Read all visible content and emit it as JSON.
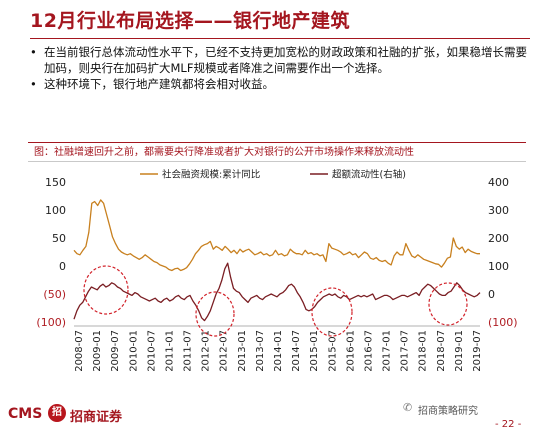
{
  "header": {
    "title": "12月行业布局选择——银行地产建筑"
  },
  "bullets": [
    "在当前银行总体流动性水平下，已经不支持更加宽松的财政政策和社融的扩张，如果稳增长需要加码，则央行在加码扩大MLF规模或者降准之间需要作出一个选择。",
    "这种环境下，银行地产建筑都将会相对收益。"
  ],
  "chart_caption": "图：社融增速回升之前，都需要央行降准或者扩大对银行的公开市场操作来释放流动性",
  "chart_data": {
    "type": "line",
    "x_tick_labels": [
      "2008-07",
      "2009-01",
      "2009-07",
      "2010-01",
      "2010-07",
      "2011-01",
      "2011-07",
      "2012-01",
      "2012-07",
      "2013-01",
      "2013-07",
      "2014-01",
      "2014-07",
      "2015-01",
      "2015-07",
      "2016-01",
      "2016-07",
      "2017-01",
      "2017-07",
      "2018-01",
      "2018-07",
      "2019-01",
      "2019-07"
    ],
    "y_left_tick_labels": [
      "150",
      "100",
      "50",
      "0",
      "(50)",
      "(100)"
    ],
    "y_left_range": [
      -100,
      150
    ],
    "y_right_tick_labels": [
      "400",
      "300",
      "200",
      "100",
      "0",
      "(100)"
    ],
    "y_right_range": [
      -100,
      400
    ],
    "legend_position": "top",
    "series": [
      {
        "name": "社会融资规模:累计同比",
        "axis": "left",
        "color": "#c8801f",
        "values": [
          28,
          22,
          20,
          28,
          35,
          60,
          112,
          115,
          108,
          118,
          112,
          92,
          72,
          52,
          40,
          30,
          25,
          22,
          20,
          22,
          18,
          15,
          12,
          15,
          20,
          16,
          12,
          8,
          6,
          2,
          0,
          -2,
          -6,
          -8,
          -5,
          -4,
          -8,
          -6,
          -3,
          4,
          12,
          22,
          28,
          35,
          38,
          40,
          44,
          30,
          35,
          32,
          28,
          35,
          30,
          24,
          28,
          22,
          30,
          25,
          28,
          30,
          25,
          20,
          22,
          25,
          20,
          22,
          18,
          20,
          28,
          20,
          22,
          18,
          20,
          30,
          25,
          22,
          22,
          20,
          28,
          22,
          24,
          20,
          22,
          18,
          20,
          8,
          40,
          32,
          30,
          28,
          25,
          20,
          22,
          25,
          20,
          22,
          15,
          20,
          25,
          22,
          14,
          12,
          15,
          10,
          8,
          10,
          5,
          2,
          18,
          25,
          20,
          20,
          40,
          28,
          18,
          15,
          20,
          16,
          12,
          10,
          8,
          6,
          4,
          3,
          -2,
          5,
          14,
          16,
          50,
          35,
          30,
          34,
          24,
          30,
          26,
          24,
          22,
          22
        ]
      },
      {
        "name": "超额流动性(右轴)",
        "axis": "right",
        "color": "#7a1e23",
        "values": [
          -90,
          -60,
          -40,
          -30,
          -10,
          10,
          25,
          20,
          15,
          28,
          35,
          25,
          30,
          40,
          35,
          25,
          20,
          10,
          5,
          0,
          -5,
          5,
          0,
          -10,
          -15,
          -20,
          -25,
          -20,
          -15,
          -25,
          -30,
          -20,
          -15,
          -25,
          -20,
          -10,
          -5,
          -15,
          -20,
          -10,
          -5,
          -25,
          -40,
          -60,
          -85,
          -95,
          -80,
          -60,
          -30,
          0,
          20,
          50,
          90,
          110,
          60,
          20,
          10,
          5,
          -10,
          -20,
          -30,
          -15,
          -10,
          -5,
          -15,
          -20,
          -10,
          -5,
          0,
          -5,
          -10,
          0,
          5,
          15,
          30,
          35,
          25,
          5,
          -10,
          -30,
          -55,
          -60,
          -55,
          -45,
          -30,
          -20,
          -10,
          -5,
          0,
          -5,
          0,
          -10,
          -15,
          -5,
          -10,
          -20,
          -15,
          -10,
          -5,
          -10,
          -5,
          -10,
          -5,
          0,
          -20,
          -15,
          -10,
          -5,
          -5,
          -10,
          -20,
          -15,
          -10,
          -5,
          -5,
          -10,
          -5,
          0,
          5,
          -5,
          15,
          25,
          35,
          30,
          20,
          10,
          0,
          -5,
          -5,
          5,
          10,
          25,
          40,
          30,
          15,
          5,
          0,
          -5,
          -10,
          -5,
          5
        ]
      }
    ]
  },
  "footer": {
    "logo": "CMS",
    "badge": "招",
    "brand": "招商证券",
    "wechat": "招商策略研究",
    "wechat_icon": "wechat-icon",
    "page": "- 22 -"
  }
}
